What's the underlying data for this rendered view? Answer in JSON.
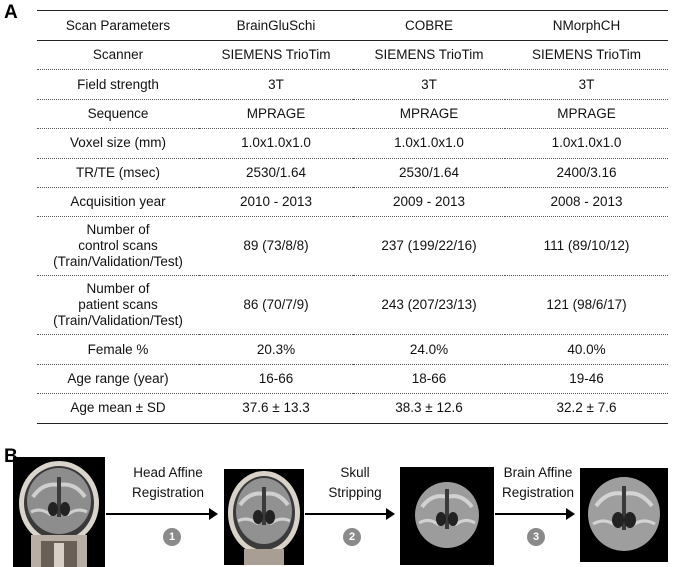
{
  "panels": {
    "a": "A",
    "b": "B"
  },
  "table": {
    "headers": [
      "Scan Parameters",
      "BrainGluSchi",
      "COBRE",
      "NMorphCH"
    ],
    "rows": [
      [
        "Scanner",
        "SIEMENS TrioTim",
        "SIEMENS TrioTim",
        "SIEMENS TrioTim"
      ],
      [
        "Field strength",
        "3T",
        "3T",
        "3T"
      ],
      [
        "Sequence",
        "MPRAGE",
        "MPRAGE",
        "MPRAGE"
      ],
      [
        "Voxel size (mm)",
        "1.0x1.0x1.0",
        "1.0x1.0x1.0",
        "1.0x1.0x1.0"
      ],
      [
        "TR/TE (msec)",
        "2530/1.64",
        "2530/1.64",
        "2400/3.16"
      ],
      [
        "Acquisition year",
        "2010 - 2013",
        "2009 - 2013",
        "2008 - 2013"
      ],
      [
        "Number of\ncontrol scans\n(Train/Validation/Test)",
        "89 (73/8/8)",
        "237 (199/22/16)",
        "111 (89/10/12)"
      ],
      [
        "Number of\npatient scans\n(Train/Validation/Test)",
        "86 (70/7/9)",
        "243 (207/23/13)",
        "121 (98/6/17)"
      ],
      [
        "Female %",
        "20.3%",
        "24.0%",
        "40.0%"
      ],
      [
        "Age range (year)",
        "16-66",
        "18-66",
        "19-46"
      ],
      [
        "Age mean ± SD",
        "37.6  ± 13.3",
        "38.3 ± 12.6",
        "32.2  ± 7.6"
      ]
    ]
  },
  "pipeline": {
    "steps": [
      {
        "label": "Head Affine\nRegistration",
        "number": "1"
      },
      {
        "label": "Skull\nStripping",
        "number": "2"
      },
      {
        "label": "Brain Affine\nRegistration",
        "number": "3"
      }
    ],
    "colors": {
      "badge": "#8a8a8a",
      "arrow": "#000000",
      "image_bg": "#000000"
    }
  }
}
